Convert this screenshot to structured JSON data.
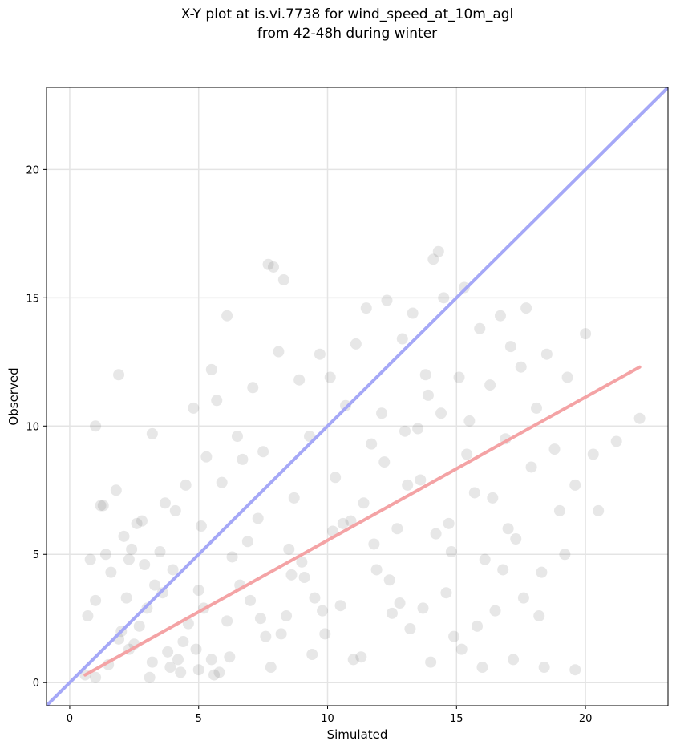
{
  "chart_data": {
    "type": "scatter",
    "title_lines": [
      "X-Y plot at is.vi.7738 for wind_speed_at_10m_agl",
      "from 42-48h during winter"
    ],
    "xlabel": "Simulated",
    "ylabel": "Observed",
    "xlim": [
      -0.9,
      23.2
    ],
    "ylim": [
      -0.9,
      23.2
    ],
    "xticks": [
      0,
      5,
      10,
      15,
      20
    ],
    "yticks": [
      0,
      5,
      10,
      15,
      20
    ],
    "grid": true,
    "reference_line": {
      "name": "1:1",
      "x": [
        -0.9,
        23.2
      ],
      "y": [
        -0.9,
        23.2
      ],
      "color": "#a5a8f7"
    },
    "fit_line": {
      "x": [
        0.6,
        22.1
      ],
      "y": [
        0.3,
        12.3
      ],
      "color": "#f4a3a5"
    },
    "marker_color": "#444444",
    "points": {
      "x": [
        0.7,
        0.8,
        1.0,
        1.0,
        1.2,
        1.3,
        1.4,
        1.6,
        1.8,
        1.9,
        2.0,
        2.1,
        2.2,
        2.3,
        2.4,
        2.5,
        2.6,
        2.8,
        2.9,
        3.0,
        3.2,
        3.3,
        3.5,
        3.6,
        3.7,
        3.8,
        4.0,
        4.1,
        4.3,
        4.5,
        4.6,
        4.8,
        5.0,
        5.1,
        5.3,
        5.5,
        5.7,
        5.9,
        6.1,
        6.3,
        6.5,
        6.7,
        6.9,
        7.1,
        7.3,
        7.5,
        7.7,
        7.9,
        8.1,
        8.3,
        8.5,
        8.7,
        8.9,
        9.1,
        9.3,
        9.5,
        9.7,
        9.9,
        10.1,
        10.3,
        10.5,
        10.7,
        10.9,
        11.1,
        11.3,
        11.5,
        11.7,
        11.9,
        12.1,
        12.3,
        12.5,
        12.7,
        12.9,
        13.1,
        13.3,
        13.5,
        13.7,
        13.9,
        14.1,
        14.3,
        14.5,
        14.7,
        14.9,
        15.1,
        15.3,
        15.5,
        15.7,
        15.9,
        16.1,
        16.3,
        16.5,
        16.7,
        16.9,
        17.1,
        17.3,
        17.5,
        17.7,
        17.9,
        18.1,
        18.3,
        18.5,
        18.8,
        19.0,
        19.3,
        19.6,
        20.0,
        20.3,
        20.5,
        21.2,
        22.1,
        1.0,
        1.9,
        3.2,
        4.9,
        5.5,
        6.1,
        7.8,
        8.2,
        9.8,
        11.0,
        12.4,
        13.2,
        14.0,
        14.6,
        15.2,
        16.0,
        17.2,
        18.4,
        19.6,
        0.6,
        1.5,
        2.7,
        3.9,
        4.4,
        5.2,
        5.8,
        6.6,
        7.4,
        8.6,
        9.4,
        10.6,
        11.8,
        12.8,
        13.6,
        14.2,
        14.8,
        15.8,
        16.8,
        17.6,
        18.2,
        2.3,
        3.1,
        4.2,
        5.0,
        5.6,
        6.2,
        7.0,
        7.6,
        8.4,
        9.0,
        10.2,
        11.4,
        12.2,
        13.0,
        13.8,
        14.4,
        15.4,
        16.4,
        17.0,
        19.2
      ],
      "y": [
        2.6,
        4.8,
        3.2,
        10.0,
        6.9,
        6.9,
        5.0,
        4.3,
        7.5,
        12.0,
        2.0,
        5.7,
        3.3,
        4.8,
        5.2,
        1.5,
        6.2,
        6.3,
        4.6,
        2.9,
        9.7,
        3.8,
        5.1,
        3.5,
        7.0,
        1.2,
        4.4,
        6.7,
        0.4,
        7.7,
        2.3,
        10.7,
        3.6,
        6.1,
        8.8,
        12.2,
        11.0,
        7.8,
        14.3,
        4.9,
        9.6,
        8.7,
        5.5,
        11.5,
        6.4,
        9.0,
        16.3,
        16.2,
        12.9,
        15.7,
        5.2,
        7.2,
        11.8,
        4.1,
        9.6,
        3.3,
        12.8,
        1.9,
        11.9,
        8.0,
        3.0,
        10.8,
        6.3,
        13.2,
        1.0,
        14.6,
        9.3,
        4.4,
        10.5,
        14.9,
        2.7,
        6.0,
        13.4,
        7.7,
        14.4,
        9.9,
        2.9,
        11.2,
        16.5,
        16.8,
        15.0,
        6.2,
        1.8,
        11.9,
        15.4,
        10.2,
        7.4,
        13.8,
        4.8,
        11.6,
        2.8,
        14.3,
        9.5,
        13.1,
        5.6,
        12.3,
        14.6,
        8.4,
        10.7,
        4.3,
        12.8,
        9.1,
        6.7,
        11.9,
        7.7,
        13.6,
        8.9,
        6.7,
        9.4,
        10.3,
        0.2,
        1.7,
        0.8,
        1.3,
        0.9,
        2.4,
        0.6,
        1.9,
        2.8,
        0.9,
        4.0,
        2.1,
        0.8,
        3.5,
        1.3,
        0.6,
        0.9,
        0.6,
        0.5,
        0.3,
        0.7,
        2.2,
        0.6,
        1.6,
        2.9,
        0.4,
        3.8,
        2.5,
        4.2,
        1.1,
        6.2,
        5.4,
        3.1,
        7.9,
        5.8,
        5.1,
        2.2,
        4.4,
        3.3,
        2.6,
        1.3,
        0.2,
        0.9,
        0.5,
        0.3,
        1.0,
        3.2,
        1.8,
        2.6,
        4.7,
        5.9,
        7.0,
        8.6,
        9.8,
        12.0,
        10.5,
        8.9,
        7.2,
        6.0,
        5.0
      ]
    }
  }
}
